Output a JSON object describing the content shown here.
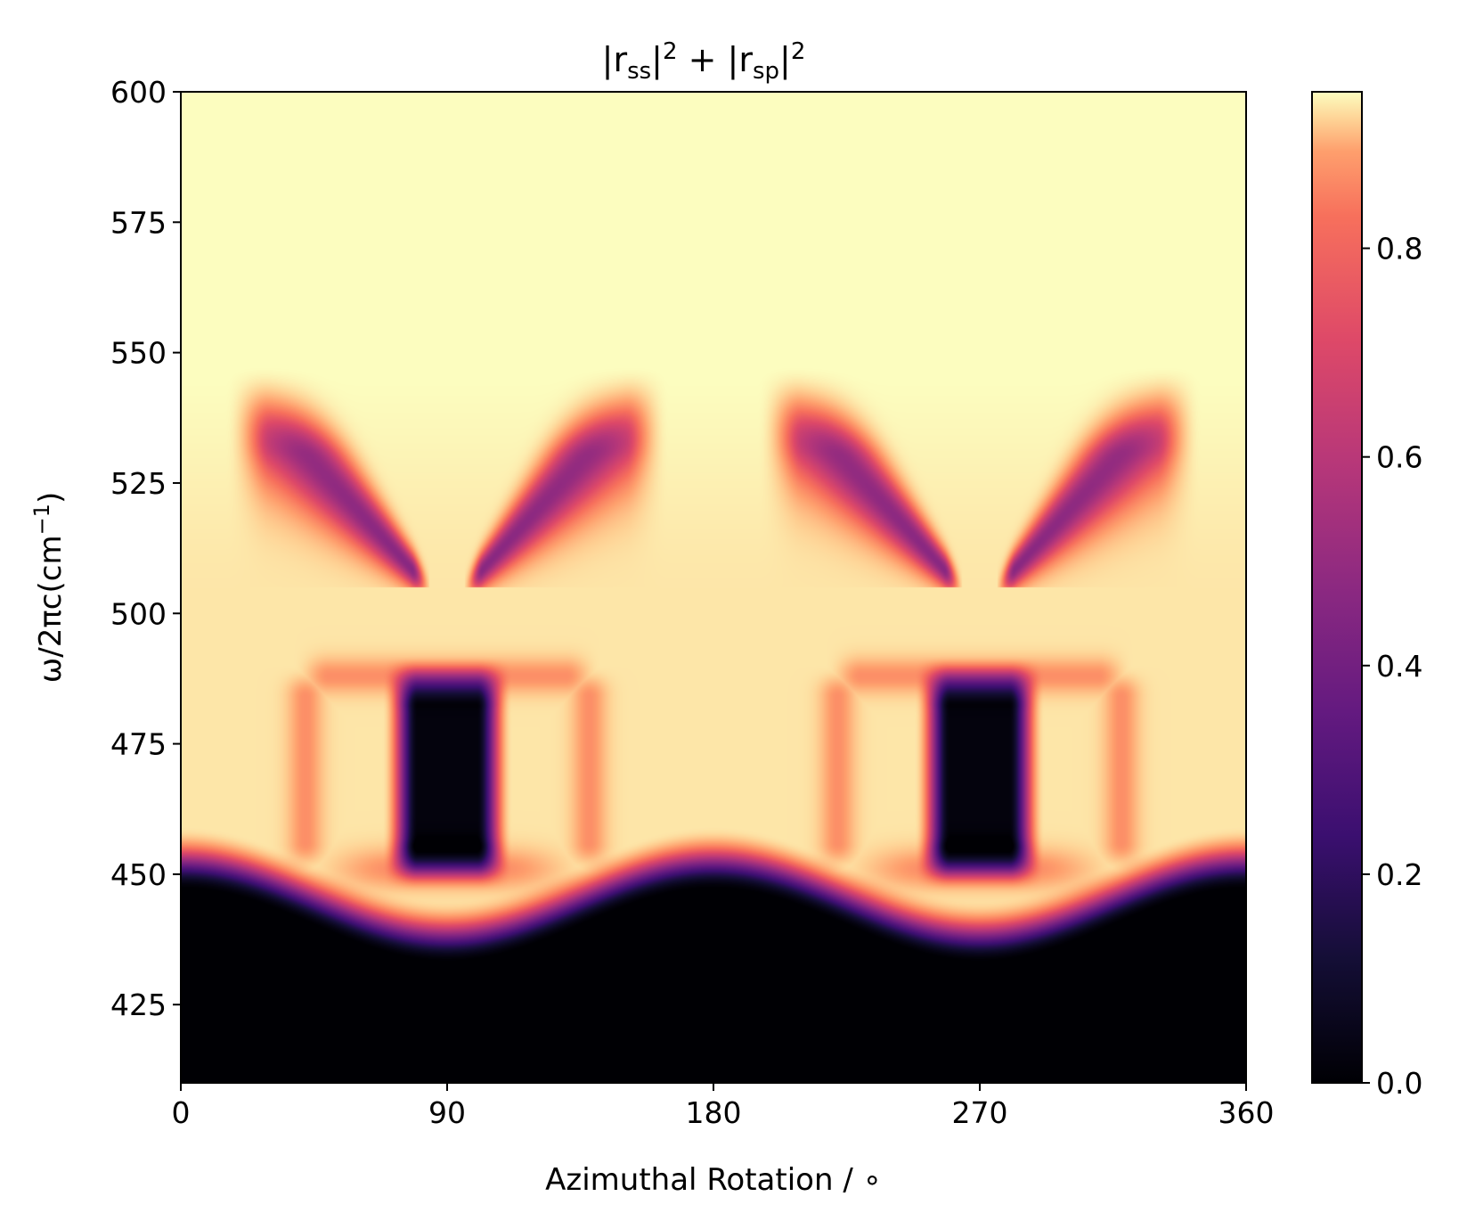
{
  "chart_data": {
    "type": "heatmap",
    "title_parts": {
      "bar": "|",
      "r": "r",
      "ss": "ss",
      "sp": "sp",
      "sup": "2",
      "plus": " + "
    },
    "xlabel": "Azimuthal Rotation / ∘",
    "ylabel_parts": {
      "main": "ω/2πc(cm",
      "sup": "−1",
      "close": ")"
    },
    "xlim": [
      0,
      360
    ],
    "ylim": [
      410,
      600
    ],
    "xticks": [
      0,
      90,
      180,
      270,
      360
    ],
    "xtick_labels": [
      "0",
      "90",
      "180",
      "270",
      "360"
    ],
    "yticks": [
      425,
      450,
      475,
      500,
      525,
      550,
      575,
      600
    ],
    "ytick_labels": [
      "425",
      "450",
      "475",
      "500",
      "525",
      "550",
      "575",
      "600"
    ],
    "colorbar": {
      "colormap": "magma",
      "range": [
        0,
        0.95
      ],
      "ticks": [
        0.0,
        0.2,
        0.4,
        0.6,
        0.8
      ],
      "tick_labels": [
        "0.0",
        "0.2",
        "0.4",
        "0.6",
        "0.8"
      ]
    },
    "features": [
      {
        "region": "frequency < ~445 cm⁻¹, all angles",
        "value": 0.0
      },
      {
        "region": "dark dips around 90° and 270°, 445–488 cm⁻¹",
        "value": 0.02
      },
      {
        "region": "orange band edge ~450 cm⁻¹ and ~488 cm⁻¹",
        "value": 0.75
      },
      {
        "region": "plateau 488–505 cm⁻¹",
        "value": 0.9
      },
      {
        "region": "wing features 505–545 cm⁻¹ near 20–80°, 110–170°, 200–260°, 290–350°",
        "value": 0.5
      },
      {
        "region": "frequency > ~550 cm⁻¹",
        "value": 0.98
      }
    ],
    "colors": {
      "low": "#000004",
      "mid": "#b73779",
      "high": "#fcfdbf"
    }
  }
}
